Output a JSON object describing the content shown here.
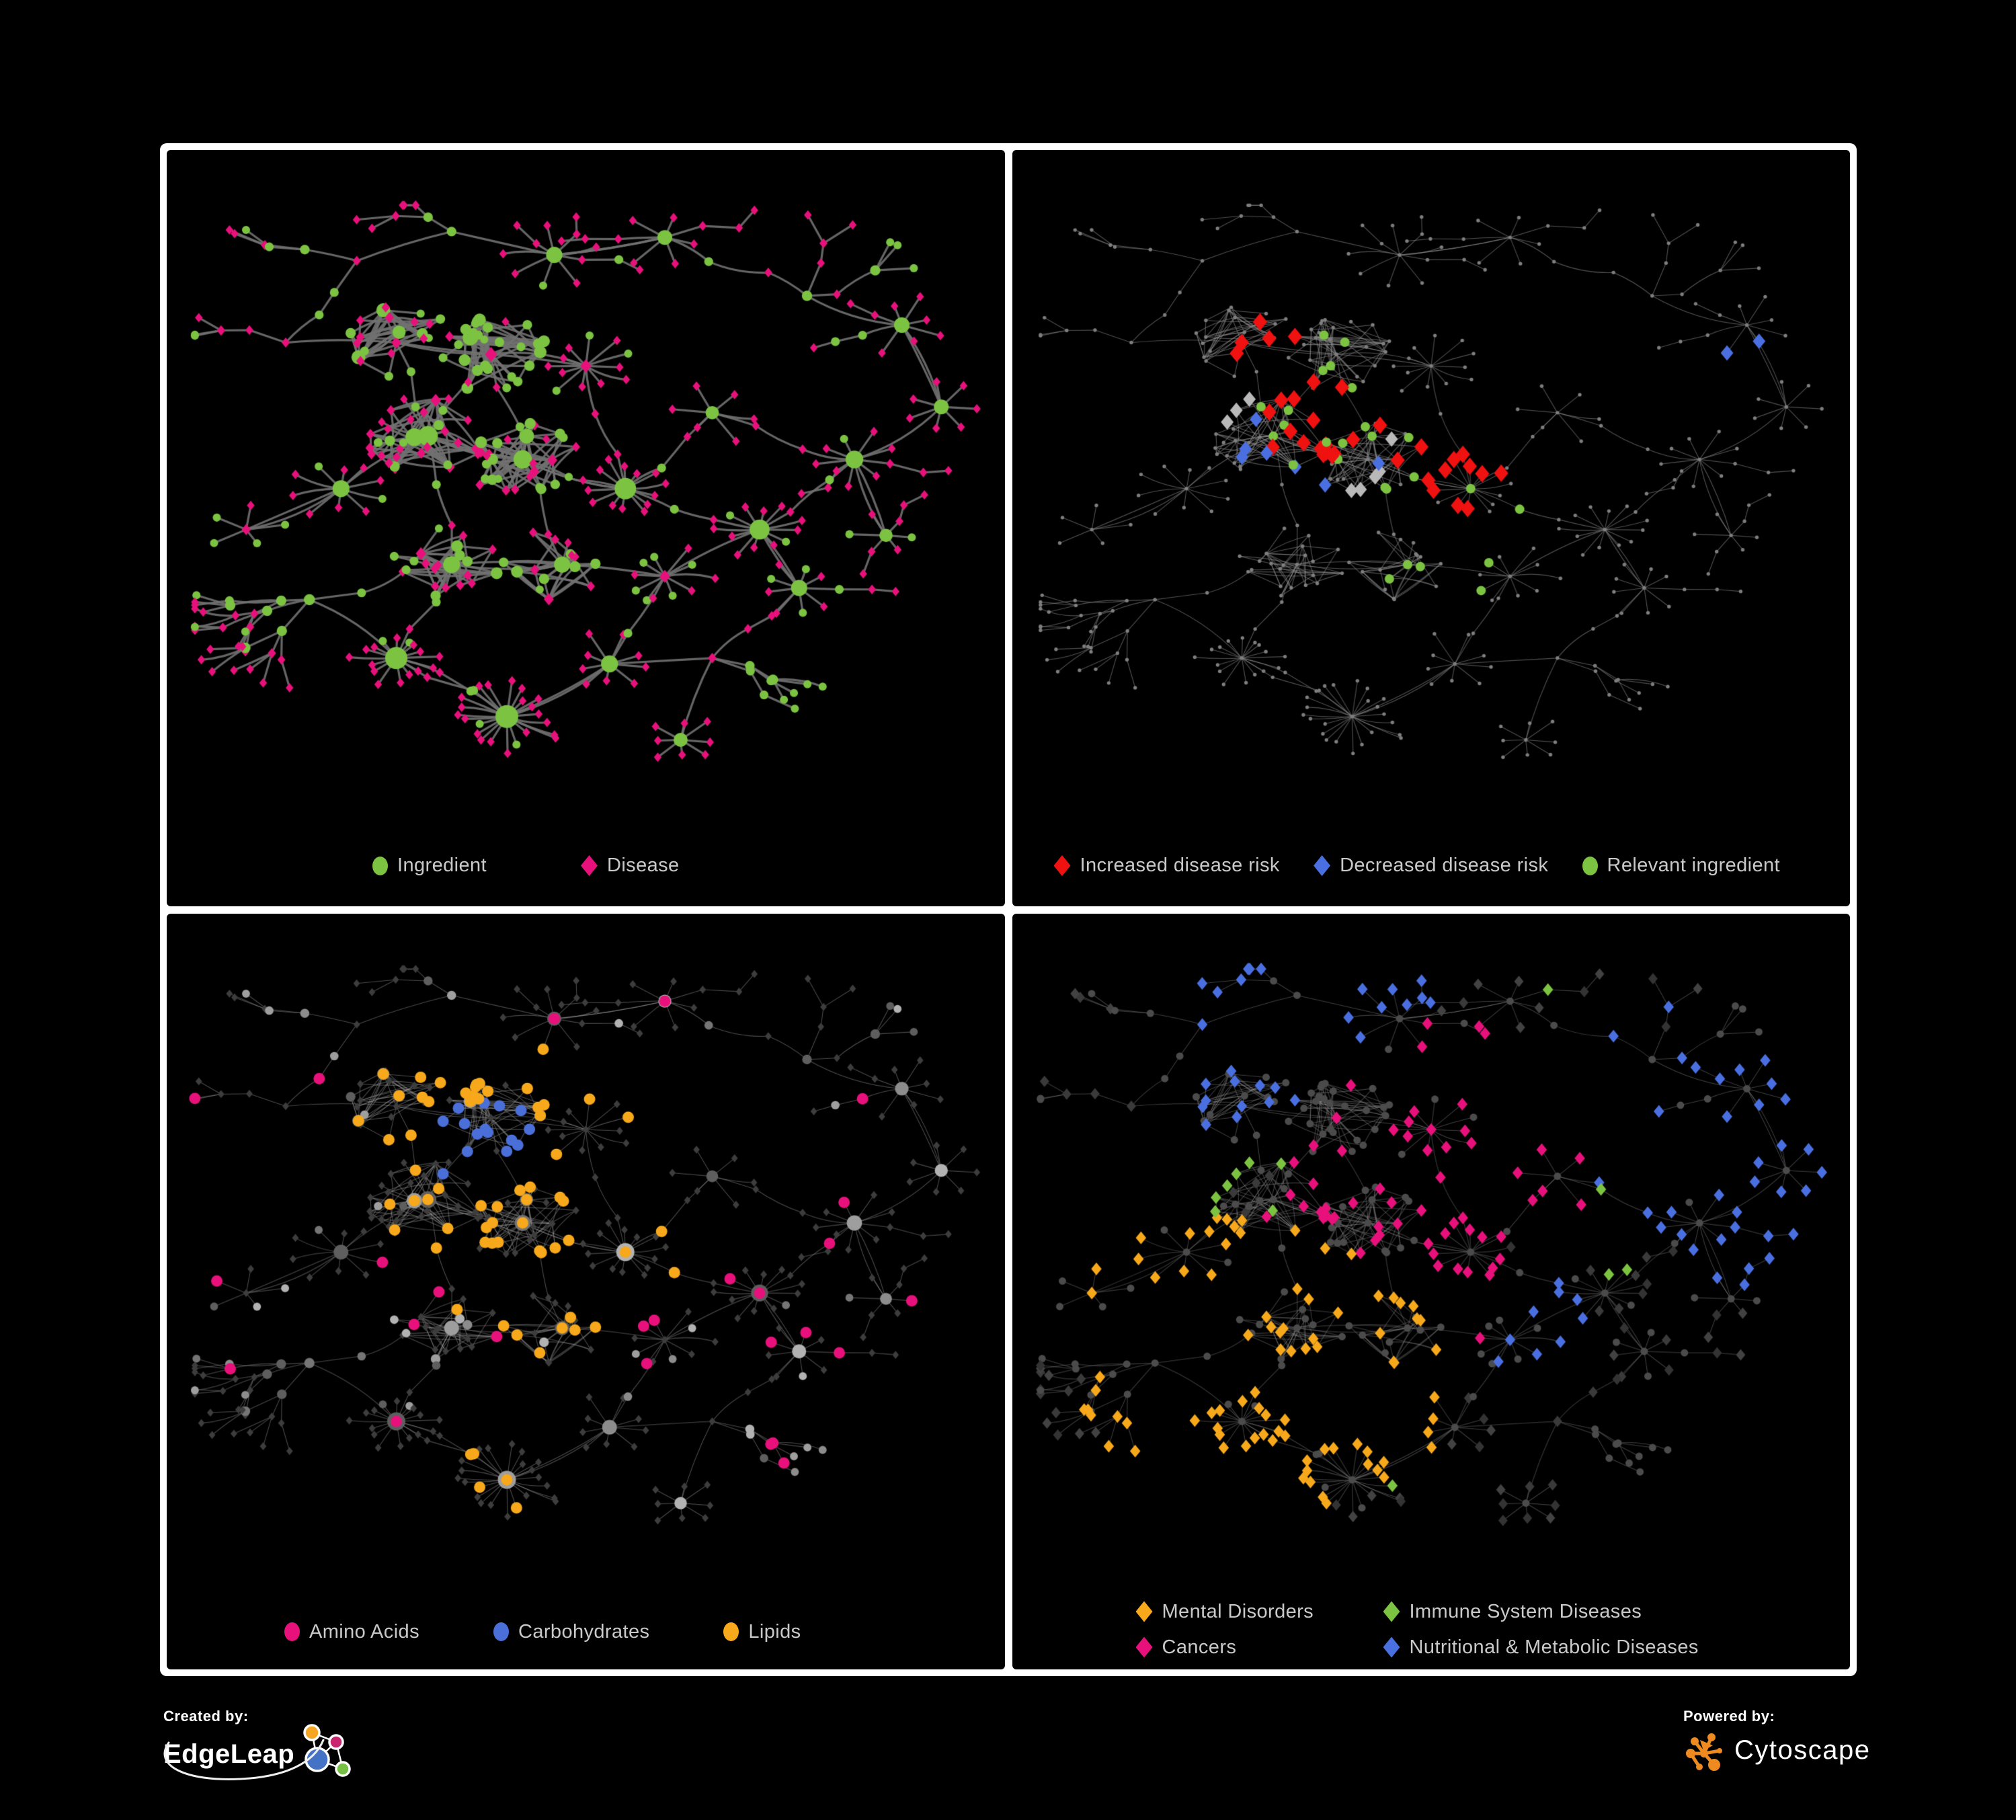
{
  "figure": {
    "background": "#000000",
    "frame_color": "#ffffff",
    "legend_text_color": "#c9c9c9",
    "panels": [
      {
        "id": "ingredient-disease",
        "legend": [
          {
            "label": "Ingredient",
            "shape": "circle",
            "color": "#7CC342"
          },
          {
            "label": "Disease",
            "shape": "diamond",
            "color": "#E8117C"
          }
        ]
      },
      {
        "id": "disease-risk",
        "legend": [
          {
            "label": "Increased disease risk",
            "shape": "diamond",
            "color": "#F01111"
          },
          {
            "label": "Decreased disease risk",
            "shape": "diamond",
            "color": "#4A6FE0"
          },
          {
            "label": "Relevant ingredient",
            "shape": "circle",
            "color": "#7CC342"
          }
        ]
      },
      {
        "id": "nutrient-classes",
        "legend": [
          {
            "label": "Amino Acids",
            "shape": "circle",
            "color": "#E8117C"
          },
          {
            "label": "Carbohydrates",
            "shape": "circle",
            "color": "#4A6FD9"
          },
          {
            "label": "Lipids",
            "shape": "circle",
            "color": "#F7A81B"
          }
        ]
      },
      {
        "id": "disease-categories",
        "legend": [
          {
            "label": "Mental Disorders",
            "shape": "diamond",
            "color": "#F7A81B"
          },
          {
            "label": "Immune System Diseases",
            "shape": "diamond",
            "color": "#7CC342"
          },
          {
            "label": "Cancers",
            "shape": "diamond",
            "color": "#E8117C"
          },
          {
            "label": "Nutritional &amp; Metabolic Diseases",
            "shape": "diamond",
            "color": "#4A6FE0"
          }
        ]
      }
    ],
    "footer": {
      "created_by": "Created by:",
      "brand_left": "EdgeLeap",
      "powered_by": "Powered by:",
      "brand_right": "Cytoscape",
      "edgeleap_glyph_colors": {
        "orange": "#F5A623",
        "magenta": "#C9256E",
        "blue": "#4472C4",
        "green": "#76C043"
      },
      "cytoscape_glyph_color": "#EE8A1F"
    }
  },
  "chart_data": {
    "type": "network",
    "shared_layout": true,
    "description": "One ingredient-disease association network drawn four times with different node stylings on black panels",
    "panels": [
      {
        "id": "ingredient-disease",
        "node_classes": [
          "Ingredient (green circle)",
          "Disease (pink diamond)"
        ],
        "edge_color": "#717171"
      },
      {
        "id": "disease-risk",
        "node_classes": [
          "Increased disease risk (red diamond)",
          "Decreased disease risk (blue diamond)",
          "Relevant ingredient (green circle)",
          "other (small grey dot)"
        ],
        "edge_color": "#8F8F8F"
      },
      {
        "id": "nutrient-classes",
        "node_classes": [
          "Amino Acids (pink circle)",
          "Carbohydrates (blue circle)",
          "Lipids (amber circle)",
          "other ingredient (grey circle)",
          "disease (dark grey diamond)"
        ],
        "edge_color": "#A5A5A5"
      },
      {
        "id": "disease-categories",
        "node_classes": [
          "Mental Disorders (amber diamond)",
          "Immune System Diseases (green diamond)",
          "Cancers (pink diamond)",
          "Nutritional & Metabolic Diseases (blue diamond)",
          "other (dark grey)"
        ],
        "edge_color": "#9A9A9A"
      }
    ],
    "generator": {
      "seed": 7,
      "clusters": [
        [
          0.21,
          0.1,
          1,
          3,
          1,
          0.3,
          0,
          1
        ],
        [
          0.33,
          0.05,
          1,
          3,
          0,
          0.3,
          0,
          1
        ],
        [
          0.46,
          0.09,
          0,
          9,
          0,
          0.2,
          0.35,
          1
        ],
        [
          0.6,
          0.06,
          0,
          7,
          0,
          0.1,
          0.2,
          1
        ],
        [
          0.12,
          0.24,
          1,
          2,
          1,
          0.3,
          0,
          1
        ],
        [
          0.26,
          0.24,
          2,
          20,
          1,
          0.55,
          0,
          1
        ],
        [
          0.38,
          0.26,
          2,
          28,
          1,
          0.75,
          0,
          1
        ],
        [
          0.5,
          0.28,
          0,
          12,
          1,
          0.5,
          0.15,
          1
        ],
        [
          0.3,
          0.4,
          2,
          32,
          0,
          0.3,
          0,
          1.1
        ],
        [
          0.42,
          0.44,
          2,
          28,
          0,
          0.45,
          0,
          1
        ],
        [
          0.19,
          0.49,
          0,
          10,
          0,
          0.15,
          0,
          1
        ],
        [
          0.55,
          0.49,
          0,
          14,
          0,
          0.1,
          0.1,
          1
        ],
        [
          0.66,
          0.36,
          0,
          6,
          0,
          0.2,
          0.4,
          1
        ],
        [
          0.78,
          0.16,
          1,
          2,
          0,
          0.3,
          0,
          1
        ],
        [
          0.9,
          0.21,
          0,
          8,
          0,
          0.1,
          0.2,
          1
        ],
        [
          0.95,
          0.35,
          0,
          7,
          0,
          0.1,
          0,
          0.9
        ],
        [
          0.84,
          0.44,
          0,
          9,
          0,
          0.15,
          0.3,
          1
        ],
        [
          0.72,
          0.56,
          0,
          12,
          0,
          0.12,
          0,
          1
        ],
        [
          0.6,
          0.64,
          0,
          10,
          1,
          0.35,
          0,
          1
        ],
        [
          0.47,
          0.62,
          2,
          16,
          0,
          0.4,
          0,
          1
        ],
        [
          0.33,
          0.62,
          2,
          20,
          0,
          0.3,
          0,
          1
        ],
        [
          0.15,
          0.68,
          1,
          3,
          0,
          0.3,
          0,
          1
        ],
        [
          0.07,
          0.56,
          0,
          5,
          1,
          0.5,
          0,
          0.9
        ],
        [
          0.26,
          0.78,
          0,
          16,
          0,
          0.08,
          0,
          1
        ],
        [
          0.4,
          0.88,
          0,
          22,
          0,
          0.06,
          0,
          1.15
        ],
        [
          0.53,
          0.79,
          0,
          9,
          0,
          0.15,
          0,
          1
        ],
        [
          0.66,
          0.78,
          1,
          3,
          1,
          0.3,
          0,
          1
        ],
        [
          0.62,
          0.92,
          0,
          8,
          0,
          0.12,
          0,
          0.9
        ],
        [
          0.77,
          0.66,
          0,
          9,
          0,
          0.15,
          0.25,
          1
        ],
        [
          0.88,
          0.57,
          0,
          6,
          0,
          0.2,
          0.5,
          0.9
        ]
      ],
      "extra_links": [
        [
          5,
          8
        ],
        [
          6,
          9
        ],
        [
          6,
          7
        ],
        [
          8,
          9
        ],
        [
          9,
          19
        ],
        [
          19,
          20
        ],
        [
          8,
          20
        ],
        [
          11,
          17
        ],
        [
          12,
          16
        ],
        [
          14,
          15
        ],
        [
          16,
          29
        ],
        [
          17,
          28
        ],
        [
          18,
          25
        ],
        [
          23,
          24
        ],
        [
          24,
          25
        ],
        [
          2,
          3
        ],
        [
          7,
          11
        ],
        [
          10,
          22
        ],
        [
          5,
          6
        ],
        [
          9,
          11
        ],
        [
          20,
          23
        ],
        [
          26,
          28
        ]
      ],
      "highlights": {
        "p2": {
          "order": [
            "red",
            "blue",
            "greyd",
            "green"
          ],
          "specs": {
            "red": {
              "count": 34,
              "noise": 0.15,
              "eligible": "disease",
              "centers": [
                [
                  0.37,
                  0.37,
                  0.12
                ],
                [
                  0.53,
                  0.45,
                  0.1
                ],
                [
                  0.78,
                  0.84,
                  0.08
                ],
                [
                  0.3,
                  0.27,
                  0.1
                ]
              ]
            },
            "blue": {
              "count": 9,
              "noise": 0.1,
              "eligible": "disease",
              "centers": [
                [
                  0.35,
                  0.41,
                  0.08
                ],
                [
                  0.89,
                  0.27,
                  0.05
                ]
              ]
            },
            "greyd": {
              "count": 8,
              "noise": 0.15,
              "eligible": "disease",
              "centers": [
                [
                  0.44,
                  0.43,
                  0.12
                ],
                [
                  0.25,
                  0.33,
                  0.08
                ]
              ]
            },
            "green": {
              "count": 26,
              "noise": 0.5,
              "eligible": "ingredient",
              "centers": [
                [
                  0.36,
                  0.35,
                  0.15
                ],
                [
                  0.55,
                  0.55,
                  0.2
                ]
              ]
            }
          }
        },
        "p3": {
          "order": [
            "carb",
            "lipid",
            "amino"
          ],
          "specs": {
            "carb": {
              "count": 15,
              "noise": 0.1,
              "eligible": "ingredient",
              "centers": [
                [
                  0.37,
                  0.305,
                  0.05
                ]
              ]
            },
            "lipid": {
              "count": 66,
              "noise": 0.28,
              "eligible": "ingredient",
              "centers": [
                [
                  0.4,
                  0.27,
                  0.1
                ],
                [
                  0.4,
                  0.88,
                  0.05
                ],
                [
                  0.55,
                  0.5,
                  0.06
                ],
                [
                  0.47,
                  0.44,
                  0.12
                ]
              ]
            },
            "amino": {
              "count": 26,
              "noise": 1.4,
              "eligible": "ingredient",
              "centers": [
                [
                  0.45,
                  0.45,
                  0.65
                ]
              ]
            }
          }
        },
        "p4": {
          "order": [
            "mental",
            "cancer",
            "nutri",
            "immune"
          ],
          "specs": {
            "mental": {
              "count": 85,
              "noise": 0.12,
              "eligible": "disease",
              "centers": [
                [
                  0.17,
                  0.52,
                  0.1
                ],
                [
                  0.3,
                  0.7,
                  0.2
                ]
              ]
            },
            "cancer": {
              "count": 60,
              "noise": 0.15,
              "eligible": "disease",
              "centers": [
                [
                  0.41,
                  0.56,
                  0.11
                ],
                [
                  0.52,
                  0.3,
                  0.12
                ]
              ]
            },
            "nutri": {
              "count": 72,
              "noise": 0.3,
              "eligible": "disease",
              "centers": [
                [
                  0.63,
                  0.62,
                  0.08
                ],
                [
                  0.86,
                  0.3,
                  0.2
                ],
                [
                  0.32,
                  0.07,
                  0.2
                ],
                [
                  0.95,
                  0.5,
                  0.1
                ]
              ]
            },
            "immune": {
              "count": 12,
              "noise": 0.8,
              "eligible": "disease",
              "centers": [
                [
                  0.4,
                  0.42,
                  0.35
                ]
              ]
            }
          }
        }
      },
      "styles": {
        "p1": {
          "edge": {
            "color": "#717171",
            "width": 3.2,
            "alpha": 0.9
          },
          "ingredient": {
            "color": "#7CC342",
            "rBase": 5.5,
            "rDeg": 0.55,
            "rMax": 17
          },
          "disease": {
            "color": "#E8117C",
            "rBase": 6.8,
            "rDeg": 0.22,
            "rMax": 11
          }
        },
        "p2": {
          "edge": {
            "color": "#8F8F8F",
            "width": 1.15,
            "alpha": 0.55
          },
          "dot": {
            "color": "#7E7E7E",
            "r": 2.7
          },
          "cats": {
            "red": {
              "color": "#F01111",
              "shape": "diamond",
              "r": 13
            },
            "blue": {
              "color": "#4A6FE0",
              "shape": "diamond",
              "r": 11.5
            },
            "greyd": {
              "color": "#B9B9B9",
              "shape": "diamond",
              "r": 11.5
            },
            "green": {
              "color": "#7CC342",
              "shape": "circle",
              "r": 7
            }
          }
        },
        "p3": {
          "edge": {
            "color": "#A5A5A5",
            "width": 1.1,
            "alpha": 0.45
          },
          "disease": {
            "color": "#3D3D3D",
            "r": 6
          },
          "ingredient": {
            "shades": [
              "#9E9E9E",
              "#8C8C8C",
              "#B2B2B2",
              "#757575",
              "#5E5E5E"
            ],
            "rBase": 5.5,
            "rDeg": 0.42,
            "rMax": 13.5
          },
          "cats": {
            "amino": {
              "color": "#E8117C",
              "shape": "circle",
              "r": 8.5
            },
            "carb": {
              "color": "#4A6FD9",
              "shape": "circle",
              "r": 8.5
            },
            "lipid": {
              "color": "#F7A81B",
              "shape": "circle",
              "r": 8.5
            }
          }
        },
        "p4": {
          "edge": {
            "color": "#9A9A9A",
            "width": 1.05,
            "alpha": 0.4
          },
          "ingredient": {
            "color": "#4B4B4B",
            "r": 5.5
          },
          "disease": {
            "shades": [
              "#3A3A3A",
              "#424242",
              "#333333"
            ],
            "r": 8.5
          },
          "cats": {
            "mental": {
              "color": "#F7A81B",
              "shape": "diamond",
              "r": 9.5
            },
            "immune": {
              "color": "#7CC342",
              "shape": "diamond",
              "r": 9.5
            },
            "cancer": {
              "color": "#E8117C",
              "shape": "diamond",
              "r": 9.5
            },
            "nutri": {
              "color": "#4A6FE0",
              "shape": "diamond",
              "r": 9.5
            }
          }
        }
      }
    }
  }
}
